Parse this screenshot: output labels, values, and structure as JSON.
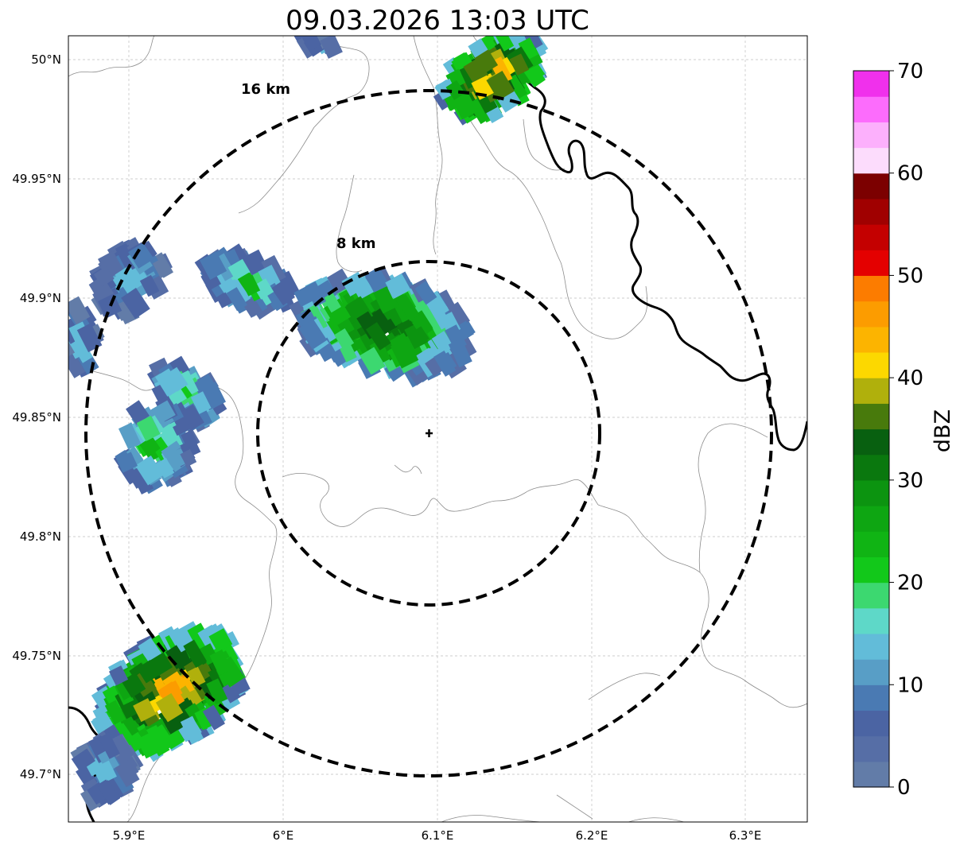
{
  "title": "09.03.2026 13:03 UTC",
  "map": {
    "lat_ticks": [
      "50°N",
      "49.95°N",
      "49.9°N",
      "49.85°N",
      "49.8°N",
      "49.75°N",
      "49.7°N"
    ],
    "lon_ticks": [
      "5.9°E",
      "6°E",
      "6.1°E",
      "6.2°E",
      "6.3°E"
    ],
    "range_rings": [
      {
        "label": "16 km",
        "radius_km": 16
      },
      {
        "label": "8 km",
        "radius_km": 8
      }
    ],
    "radar_site": {
      "lat": 49.843,
      "lon": 6.095
    }
  },
  "colorbar": {
    "label": "dBZ",
    "ticks": [
      "0",
      "10",
      "20",
      "30",
      "40",
      "50",
      "60",
      "70"
    ],
    "min": 0,
    "max": 70,
    "step": 5,
    "colors": [
      "#627ca8",
      "#566ea6",
      "#4b64a3",
      "#4a7ab3",
      "#589ec6",
      "#62bcd9",
      "#5ed8c8",
      "#3cd870",
      "#12c81a",
      "#10b414",
      "#0ea612",
      "#0c9410",
      "#0a780e",
      "#086010",
      "#487a0c",
      "#b0b00c",
      "#fcd800",
      "#fcb400",
      "#fc9c00",
      "#fc7c00",
      "#e40000",
      "#c40000",
      "#a00000",
      "#7c0000",
      "#fcdcfc",
      "#fcb0fc",
      "#fc6cfc",
      "#f030ec"
    ]
  }
}
